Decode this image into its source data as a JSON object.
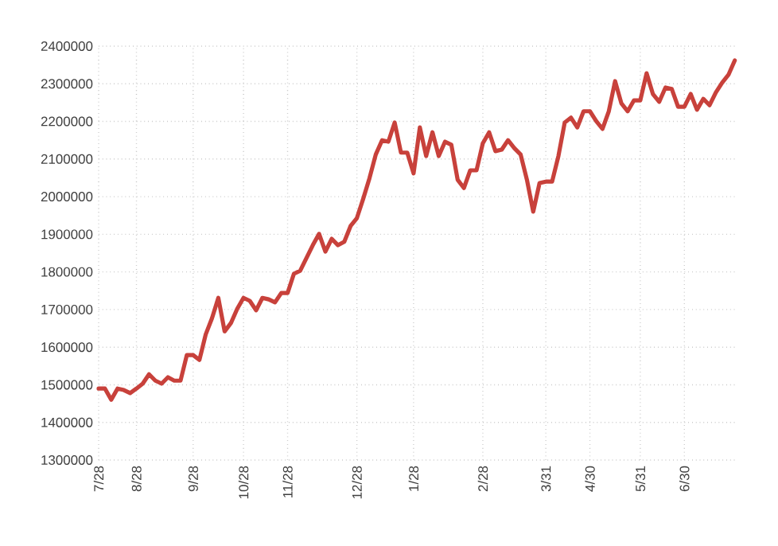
{
  "chart_data": {
    "type": "line",
    "categories": [
      "7/28",
      null,
      null,
      null,
      null,
      null,
      "8/28",
      null,
      null,
      null,
      null,
      null,
      null,
      null,
      null,
      "9/28",
      null,
      null,
      null,
      null,
      null,
      null,
      null,
      "10/28",
      null,
      null,
      null,
      null,
      null,
      null,
      "11/28",
      null,
      null,
      null,
      null,
      null,
      null,
      null,
      null,
      null,
      null,
      "12/28",
      null,
      null,
      null,
      null,
      null,
      null,
      null,
      null,
      "1/28",
      null,
      null,
      null,
      null,
      null,
      null,
      null,
      null,
      null,
      null,
      "2/28",
      null,
      null,
      null,
      null,
      null,
      null,
      null,
      null,
      null,
      "3/31",
      null,
      null,
      null,
      null,
      null,
      null,
      "4/30",
      null,
      null,
      null,
      null,
      null,
      null,
      null,
      "5/31",
      null,
      null,
      null,
      null,
      null,
      null,
      "6/30",
      null,
      null,
      null,
      null,
      null,
      null,
      null,
      null
    ],
    "series": [
      {
        "color": "#c8413b",
        "values": [
          1490000,
          1490000,
          1460000,
          1490000,
          1486000,
          1478000,
          1490000,
          1503000,
          1528000,
          1511000,
          1503000,
          1520000,
          1511000,
          1511000,
          1579000,
          1579000,
          1566000,
          1634000,
          1677000,
          1731000,
          1642000,
          1664000,
          1702000,
          1731000,
          1723000,
          1698000,
          1731000,
          1727000,
          1719000,
          1744000,
          1744000,
          1795000,
          1803000,
          1837000,
          1871000,
          1901000,
          1854000,
          1888000,
          1871000,
          1880000,
          1922000,
          1943000,
          1994000,
          2049000,
          2112000,
          2150000,
          2146000,
          2197000,
          2117000,
          2117000,
          2062000,
          2184000,
          2108000,
          2171000,
          2108000,
          2146000,
          2138000,
          2045000,
          2023000,
          2070000,
          2070000,
          2142000,
          2171000,
          2121000,
          2125000,
          2150000,
          2129000,
          2112000,
          2045000,
          1960000,
          2036000,
          2040000,
          2040000,
          2108000,
          2197000,
          2210000,
          2184000,
          2227000,
          2227000,
          2201000,
          2180000,
          2227000,
          2307000,
          2248000,
          2227000,
          2256000,
          2256000,
          2328000,
          2273000,
          2252000,
          2290000,
          2286000,
          2239000,
          2239000,
          2273000,
          2231000,
          2260000,
          2243000,
          2277000,
          2303000,
          2324000,
          2362000
        ]
      }
    ],
    "ylim": [
      1300000,
      2400000
    ],
    "yticks": [
      1300000,
      1400000,
      1500000,
      1600000,
      1700000,
      1800000,
      1900000,
      2000000,
      2100000,
      2200000,
      2300000,
      2400000
    ],
    "grid": true,
    "line_style": "solid"
  }
}
